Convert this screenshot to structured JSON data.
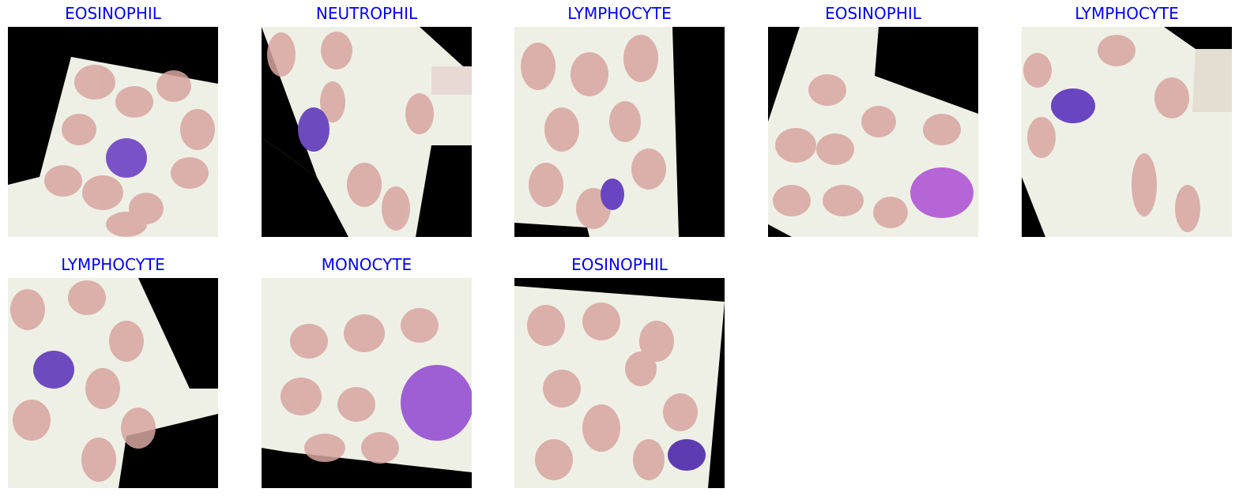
{
  "theme": {
    "title_color": "#0000ff",
    "background": "#ffffff",
    "smear_bg": "#eef0ea",
    "rbc_color": "#d7a7a3",
    "nucleus_color": "#7a52c8",
    "padding_color": "#000000"
  },
  "panels": [
    {
      "label": "EOSINOPHIL"
    },
    {
      "label": "NEUTROPHIL"
    },
    {
      "label": "LYMPHOCYTE"
    },
    {
      "label": "EOSINOPHIL"
    },
    {
      "label": "LYMPHOCYTE"
    },
    {
      "label": "LYMPHOCYTE"
    },
    {
      "label": "MONOCYTE"
    },
    {
      "label": "EOSINOPHIL"
    }
  ]
}
